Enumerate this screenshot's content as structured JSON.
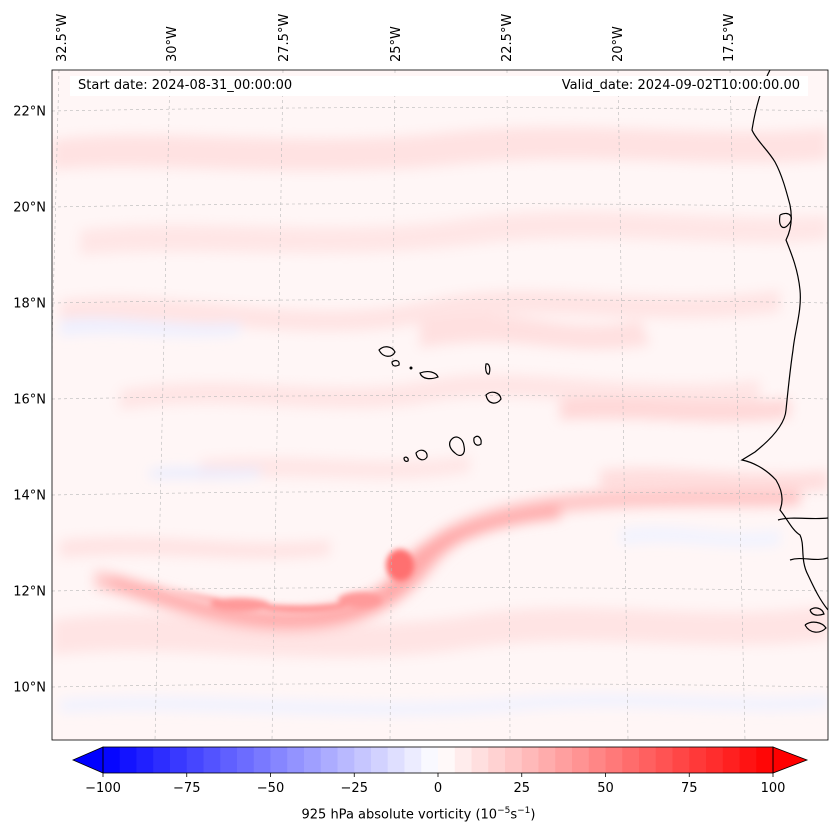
{
  "map": {
    "start_label": "Start date: 2024-08-31_00:00:00",
    "valid_label": "Valid_date: 2024-09-02T10:00:00.00",
    "lon_labels": [
      "32.5°W",
      "30°W",
      "27.5°W",
      "25°W",
      "22.5°W",
      "20°W",
      "17.5°W"
    ],
    "lat_labels": [
      "22°N",
      "20°N",
      "18°N",
      "16°N",
      "14°N",
      "12°N",
      "10°N"
    ],
    "field_colors": {
      "positive": "#ff0000",
      "negative": "#0000ff",
      "neutral": "#ffffff"
    }
  },
  "colorbar": {
    "ticks": [
      "−100",
      "−75",
      "−50",
      "−25",
      "0",
      "25",
      "50",
      "75",
      "100"
    ],
    "min": -100,
    "max": 100,
    "levels": 40,
    "label_prefix": "925 hPa absolute vorticity (10",
    "label_exp1": "−5",
    "label_mid": "s",
    "label_exp2": "−1",
    "label_suffix": ")"
  }
}
